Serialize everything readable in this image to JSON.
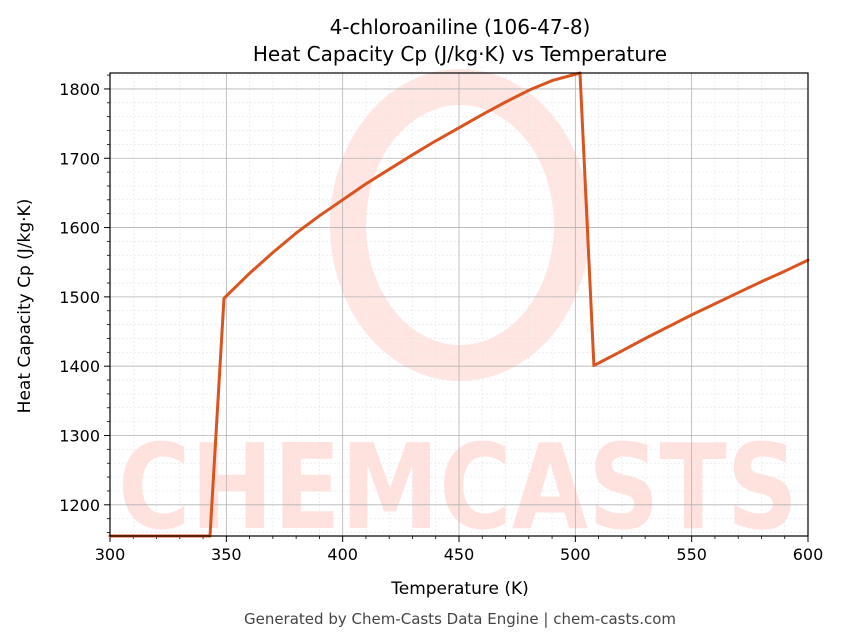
{
  "chart_data": {
    "type": "line",
    "title": "4-chloroaniline (106-47-8)",
    "subtitle": "Heat Capacity Cp (J/kg·K) vs Temperature",
    "xlabel": "Temperature (K)",
    "ylabel": "Heat Capacity Cp (J/kg·K)",
    "xlim": [
      300,
      600
    ],
    "ylim": [
      1155,
      1823
    ],
    "xticks": [
      "300",
      "350",
      "400",
      "450",
      "500",
      "550",
      "600"
    ],
    "yticks": [
      "1200",
      "1300",
      "1400",
      "1500",
      "1600",
      "1700",
      "1800"
    ],
    "grid": true,
    "series": [
      {
        "color": "#d9541e",
        "x": [
          300,
          343,
          349,
          360,
          370,
          380,
          390,
          400,
          410,
          420,
          430,
          440,
          450,
          460,
          470,
          480,
          490,
          502,
          508,
          520,
          530,
          540,
          550,
          560,
          570,
          580,
          590,
          600
        ],
        "y": [
          1155,
          1155,
          1498,
          1534,
          1564,
          1592,
          1617,
          1640,
          1663,
          1684,
          1705,
          1725,
          1744,
          1763,
          1781,
          1798,
          1812,
          1823,
          1401,
          1422,
          1440,
          1457,
          1474,
          1490,
          1506,
          1522,
          1537,
          1553
        ]
      }
    ]
  },
  "footer": "Generated by Chem-Casts Data Engine | chem-casts.com",
  "watermark": "CHEMCASTS"
}
